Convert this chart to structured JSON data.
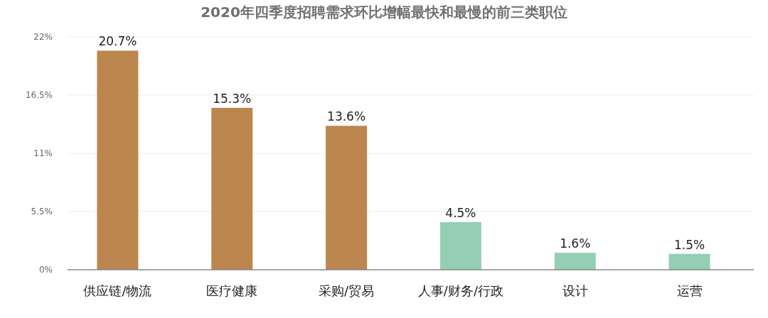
{
  "chart_data": {
    "type": "bar",
    "title": "2020年四季度招聘需求环比增幅最快和最慢的前三类职位",
    "categories": [
      "供应链/物流",
      "医疗健康",
      "采购/贸易",
      "人事/财务/行政",
      "设计",
      "运营"
    ],
    "values": [
      20.7,
      15.3,
      13.6,
      4.5,
      1.6,
      1.5
    ],
    "colors": [
      "#bc864f",
      "#bc864f",
      "#bc864f",
      "#95cfb3",
      "#95cfb3",
      "#95cfb3"
    ],
    "value_labels": [
      "20.7%",
      "15.3%",
      "13.6%",
      "4.5%",
      "1.6%",
      "1.5%"
    ],
    "ylim": [
      0,
      22
    ],
    "yticks": [
      {
        "value": 0,
        "label": "0%"
      },
      {
        "value": 5.5,
        "label": "5.5%"
      },
      {
        "value": 11,
        "label": "11%"
      },
      {
        "value": 16.5,
        "label": "16.5%"
      },
      {
        "value": 22,
        "label": "22%"
      }
    ],
    "grid": "y"
  }
}
